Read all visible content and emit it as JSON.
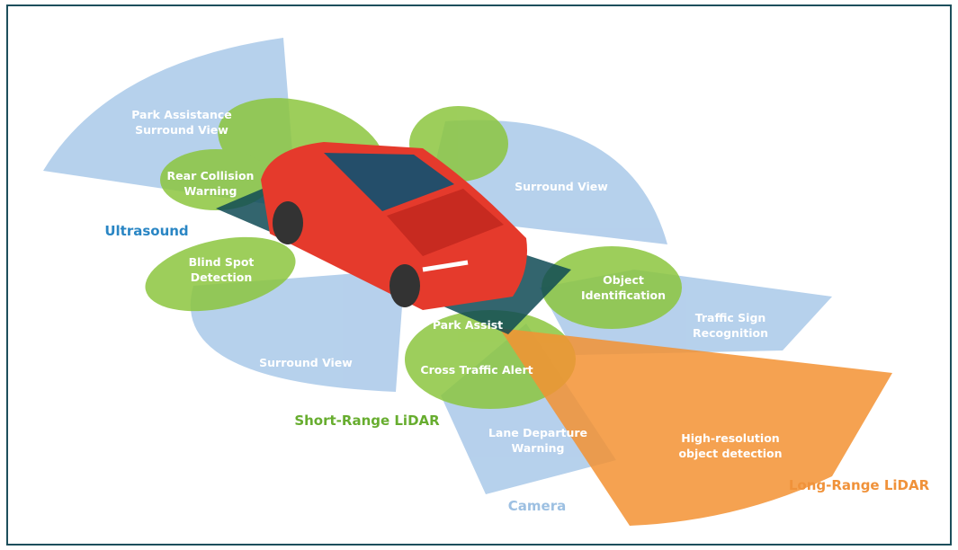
{
  "zones": [
    {
      "lines": [
        "Park Assistance",
        "Surround View"
      ]
    },
    {
      "lines": [
        "Rear Collision",
        "Warning"
      ]
    },
    {
      "lines": [
        "Blind Spot",
        "Detection"
      ]
    },
    {
      "lines": [
        "Surround View"
      ]
    },
    {
      "lines": [
        "Surround View"
      ]
    },
    {
      "lines": [
        "Park Assist"
      ]
    },
    {
      "lines": [
        "Object",
        "Identification"
      ]
    },
    {
      "lines": [
        "Traffic Sign",
        "Recognition"
      ]
    },
    {
      "lines": [
        "Cross Traffic Alert"
      ]
    },
    {
      "lines": [
        "Lane Departure",
        "Warning"
      ]
    },
    {
      "lines": [
        "High-resolution",
        "object detection"
      ]
    }
  ],
  "technologies": [
    "Ultrasound",
    "Short-Range LiDAR",
    "Camera",
    "Long-Range LiDAR"
  ]
}
